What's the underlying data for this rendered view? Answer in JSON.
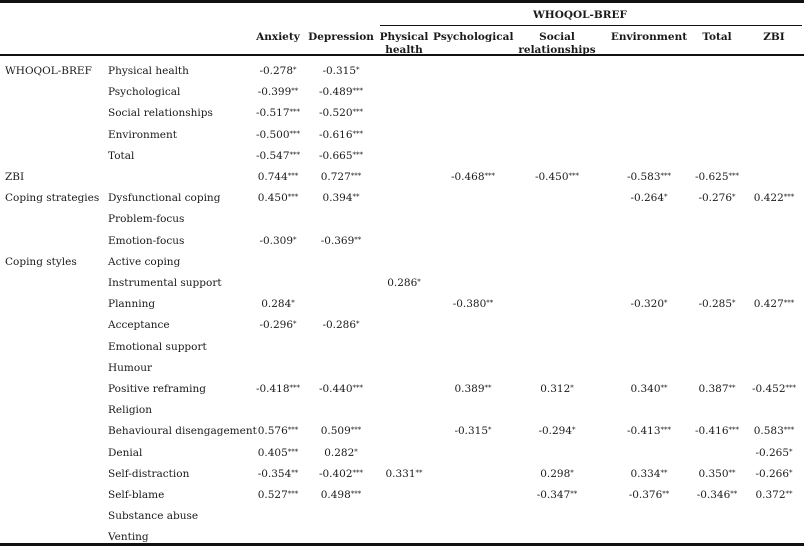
{
  "super_header": "WHOQOL-BREF",
  "columns": [
    [
      "Anxiety"
    ],
    [
      "Depression"
    ],
    [
      "Physical",
      "health"
    ],
    [
      "Psychological"
    ],
    [
      "Social",
      "relationships"
    ],
    [
      "Environment"
    ],
    [
      "Total"
    ],
    [
      "ZBI"
    ]
  ],
  "rows": [
    {
      "group": "WHOQOL-BREF",
      "label": "Physical health",
      "cells": [
        "-0.278*",
        "-0.315*",
        "",
        "",
        "",
        "",
        "",
        ""
      ]
    },
    {
      "group": "",
      "label": "Psychological",
      "cells": [
        "-0.399**",
        "-0.489***",
        "",
        "",
        "",
        "",
        "",
        ""
      ]
    },
    {
      "group": "",
      "label": "Social relationships",
      "cells": [
        "-0.517***",
        "-0.520***",
        "",
        "",
        "",
        "",
        "",
        ""
      ]
    },
    {
      "group": "",
      "label": "Environment",
      "cells": [
        "-0.500***",
        "-0.616***",
        "",
        "",
        "",
        "",
        "",
        ""
      ]
    },
    {
      "group": "",
      "label": "Total",
      "cells": [
        "-0.547***",
        "-0.665***",
        "",
        "",
        "",
        "",
        "",
        ""
      ]
    },
    {
      "group": "ZBI",
      "label": "",
      "cells": [
        "0.744***",
        "0.727***",
        "",
        "-0.468***",
        "-0.450***",
        "-0.583***",
        "-0.625***",
        ""
      ]
    },
    {
      "group": "Coping strategies",
      "label": "Dysfunctional coping",
      "cells": [
        "0.450***",
        "0.394**",
        "",
        "",
        "",
        "-0.264*",
        "-0.276*",
        "0.422***"
      ]
    },
    {
      "group": "",
      "label": "Problem-focus",
      "cells": [
        "",
        "",
        "",
        "",
        "",
        "",
        "",
        ""
      ]
    },
    {
      "group": "",
      "label": "Emotion-focus",
      "cells": [
        "-0.309*",
        "-0.369**",
        "",
        "",
        "",
        "",
        "",
        ""
      ]
    },
    {
      "group": "Coping styles",
      "label": "Active coping",
      "cells": [
        "",
        "",
        "",
        "",
        "",
        "",
        "",
        ""
      ]
    },
    {
      "group": "",
      "label": "Instrumental support",
      "cells": [
        "",
        "",
        "0.286*",
        "",
        "",
        "",
        "",
        ""
      ]
    },
    {
      "group": "",
      "label": "Planning",
      "cells": [
        "0.284*",
        "",
        "",
        "-0.380**",
        "",
        "-0.320*",
        "-0.285*",
        "0.427***"
      ]
    },
    {
      "group": "",
      "label": "Acceptance",
      "cells": [
        "-0.296*",
        "-0.286*",
        "",
        "",
        "",
        "",
        "",
        ""
      ]
    },
    {
      "group": "",
      "label": "Emotional support",
      "cells": [
        "",
        "",
        "",
        "",
        "",
        "",
        "",
        ""
      ]
    },
    {
      "group": "",
      "label": "Humour",
      "cells": [
        "",
        "",
        "",
        "",
        "",
        "",
        "",
        ""
      ]
    },
    {
      "group": "",
      "label": "Positive reframing",
      "cells": [
        "-0.418***",
        "-0.440***",
        "",
        "0.389**",
        "0.312*",
        "0.340**",
        "0.387**",
        "-0.452***"
      ]
    },
    {
      "group": "",
      "label": "Religion",
      "cells": [
        "",
        "",
        "",
        "",
        "",
        "",
        "",
        ""
      ]
    },
    {
      "group": "",
      "label": "Behavioural disengagement",
      "cells": [
        "0.576***",
        "0.509***",
        "",
        "-0.315*",
        "-0.294*",
        "-0.413***",
        "-0.416***",
        "0.583***"
      ]
    },
    {
      "group": "",
      "label": "Denial",
      "cells": [
        "0.405***",
        "0.282*",
        "",
        "",
        "",
        "",
        "",
        "-0.265*"
      ]
    },
    {
      "group": "",
      "label": "Self-distraction",
      "cells": [
        "-0.354**",
        "-0.402***",
        "0.331**",
        "",
        "0.298*",
        "0.334**",
        "0.350**",
        "-0.266*"
      ]
    },
    {
      "group": "",
      "label": "Self-blame",
      "cells": [
        "0.527***",
        "0.498***",
        "",
        "",
        "-0.347**",
        "-0.376**",
        "-0.346**",
        "0.372**"
      ]
    },
    {
      "group": "",
      "label": "Substance abuse",
      "cells": [
        "",
        "",
        "",
        "",
        "",
        "",
        "",
        ""
      ]
    },
    {
      "group": "",
      "label": "Venting",
      "cells": [
        "",
        "",
        "",
        "",
        "",
        "",
        "",
        ""
      ]
    }
  ]
}
